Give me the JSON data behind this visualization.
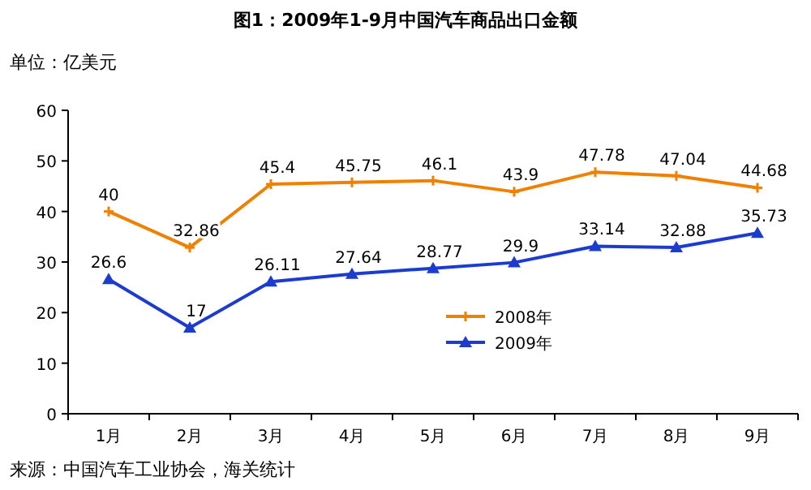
{
  "chart_data": {
    "type": "line",
    "title": "图1：2009年1-9月中国汽车商品出口金额",
    "ylabel": "单位：亿美元",
    "categories": [
      "1月",
      "2月",
      "3月",
      "4月",
      "5月",
      "6月",
      "7月",
      "8月",
      "9月"
    ],
    "series": [
      {
        "name": "2008年",
        "color": "#f08000",
        "marker": "cross",
        "values": [
          40,
          32.86,
          45.4,
          45.75,
          46.1,
          43.9,
          47.78,
          47.04,
          44.68
        ]
      },
      {
        "name": "2009年",
        "color": "#1c3cd0",
        "marker": "triangle",
        "values": [
          26.6,
          17,
          26.11,
          27.64,
          28.77,
          29.9,
          33.14,
          32.88,
          35.73
        ]
      }
    ],
    "ylim": [
      0,
      60
    ],
    "yticks": [
      0,
      10,
      20,
      30,
      40,
      50,
      60
    ],
    "grid": false,
    "legend": "bottom",
    "data_labels": true,
    "annotations": [
      "来源：中国汽车工业协会，海关统计"
    ]
  }
}
